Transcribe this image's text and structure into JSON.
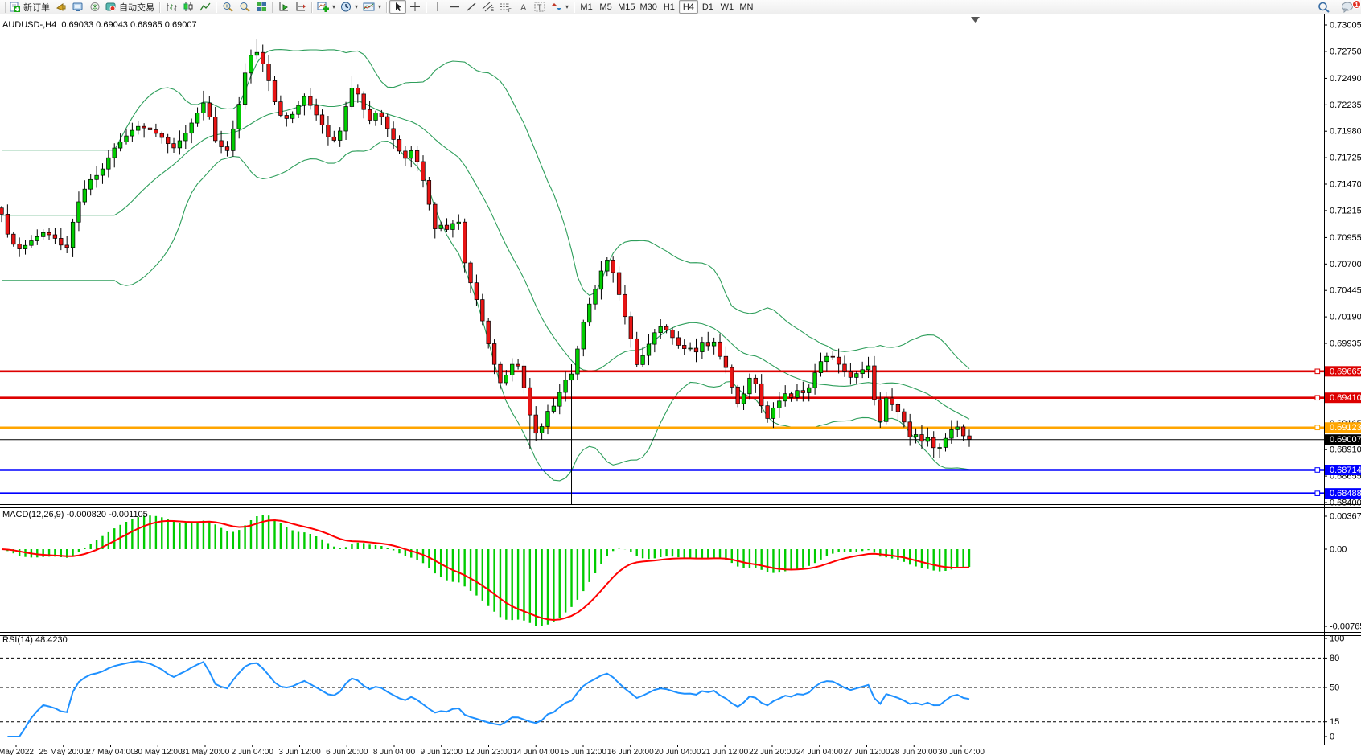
{
  "toolbar": {
    "new_order_label": "新订单",
    "autotrading_label": "自动交易",
    "timeframes": [
      "M1",
      "M5",
      "M15",
      "M30",
      "H1",
      "H4",
      "D1",
      "W1",
      "MN"
    ],
    "active_timeframe": "H4",
    "notification_count": "1"
  },
  "chart_title": "AUDUSD-,H4  0.69033 0.69043 0.68985 0.69007",
  "chart_data": {
    "type": "candlestick",
    "symbol": "AUDUSD-",
    "timeframe": "H4",
    "ohlc_display": {
      "open": "0.69033",
      "high": "0.69043",
      "low": "0.68985",
      "close": "0.69007"
    },
    "ylim": [
      0.68369,
      0.7309
    ],
    "price_axis_labels": [
      "0.73005",
      "0.72750",
      "0.72490",
      "0.72235",
      "0.71980",
      "0.71725",
      "0.71470",
      "0.71215",
      "0.70955",
      "0.70700",
      "0.70445",
      "0.70190",
      "0.69935",
      "0.69165",
      "0.68910",
      "0.68655",
      "0.68400"
    ],
    "price_axis_values": [
      0.73005,
      0.7275,
      0.7249,
      0.72235,
      0.7198,
      0.71725,
      0.7147,
      0.71215,
      0.70955,
      0.707,
      0.70445,
      0.7019,
      0.69935,
      0.69165,
      0.6891,
      0.68655,
      0.684
    ],
    "horizontal_lines": [
      {
        "price": 0.69665,
        "label": "0.69665",
        "color": "#DD0000"
      },
      {
        "price": 0.6941,
        "label": "0.69410",
        "color": "#DD0000"
      },
      {
        "price": 0.69123,
        "label": "0.69123",
        "color": "#FFA500"
      },
      {
        "price": 0.68714,
        "label": "0.68714",
        "color": "#0000FF"
      },
      {
        "price": 0.68488,
        "label": "0.68488",
        "color": "#0000FF"
      }
    ],
    "current_price": {
      "value": 0.69007,
      "label": "0.69007",
      "color": "#000000"
    },
    "candle_colors": {
      "up": "#00CE00",
      "down": "#E81414",
      "outline": "#000000"
    },
    "price_path": [
      [
        2,
        0.7118
      ],
      [
        12,
        0.7092
      ],
      [
        25,
        0.7084
      ],
      [
        40,
        0.7093
      ],
      [
        55,
        0.7101
      ],
      [
        70,
        0.7094
      ],
      [
        82,
        0.7082
      ],
      [
        95,
        0.7125
      ],
      [
        110,
        0.715
      ],
      [
        125,
        0.7158
      ],
      [
        140,
        0.718
      ],
      [
        155,
        0.7192
      ],
      [
        170,
        0.7203
      ],
      [
        185,
        0.72
      ],
      [
        200,
        0.7193
      ],
      [
        215,
        0.7181
      ],
      [
        230,
        0.7195
      ],
      [
        245,
        0.7215
      ],
      [
        255,
        0.7228
      ],
      [
        268,
        0.7188
      ],
      [
        282,
        0.7178
      ],
      [
        295,
        0.7215
      ],
      [
        308,
        0.7268
      ],
      [
        318,
        0.7276
      ],
      [
        330,
        0.7258
      ],
      [
        342,
        0.7225
      ],
      [
        352,
        0.7208
      ],
      [
        365,
        0.7215
      ],
      [
        378,
        0.7232
      ],
      [
        390,
        0.7218
      ],
      [
        402,
        0.7202
      ],
      [
        412,
        0.7186
      ],
      [
        422,
        0.7196
      ],
      [
        432,
        0.7228
      ],
      [
        440,
        0.7245
      ],
      [
        450,
        0.7222
      ],
      [
        460,
        0.7208
      ],
      [
        470,
        0.7219
      ],
      [
        480,
        0.7203
      ],
      [
        492,
        0.7186
      ],
      [
        502,
        0.717
      ],
      [
        512,
        0.718
      ],
      [
        522,
        0.7163
      ],
      [
        532,
        0.7132
      ],
      [
        542,
        0.71
      ],
      [
        552,
        0.7112
      ],
      [
        560,
        0.7092
      ],
      [
        567,
        0.7133
      ],
      [
        575,
        0.7078
      ],
      [
        585,
        0.7052
      ],
      [
        595,
        0.703
      ],
      [
        605,
        0.6999
      ],
      [
        615,
        0.6972
      ],
      [
        623,
        0.6953
      ],
      [
        632,
        0.6967
      ],
      [
        641,
        0.6979
      ],
      [
        649,
        0.696
      ],
      [
        657,
        0.693
      ],
      [
        665,
        0.6906
      ],
      [
        673,
        0.6912
      ],
      [
        681,
        0.6928
      ],
      [
        690,
        0.6934
      ],
      [
        698,
        0.6951
      ],
      [
        706,
        0.6962
      ],
      [
        713,
        0.6965
      ],
      [
        720,
        0.6998
      ],
      [
        728,
        0.7022
      ],
      [
        736,
        0.7038
      ],
      [
        744,
        0.7053
      ],
      [
        752,
        0.7077
      ],
      [
        760,
        0.7068
      ],
      [
        768,
        0.7045
      ],
      [
        776,
        0.7022
      ],
      [
        784,
        0.6999
      ],
      [
        792,
        0.6972
      ],
      [
        800,
        0.6983
      ],
      [
        808,
        0.6995
      ],
      [
        816,
        0.7007
      ],
      [
        824,
        0.7011
      ],
      [
        832,
        0.7003
      ],
      [
        840,
        0.6995
      ],
      [
        848,
        0.6987
      ],
      [
        856,
        0.6991
      ],
      [
        864,
        0.6983
      ],
      [
        872,
        0.6995
      ],
      [
        880,
        0.6991
      ],
      [
        888,
        0.6995
      ],
      [
        896,
        0.6979
      ],
      [
        904,
        0.6968
      ],
      [
        912,
        0.6945
      ],
      [
        920,
        0.693
      ],
      [
        928,
        0.6956
      ],
      [
        936,
        0.6964
      ],
      [
        944,
        0.6941
      ],
      [
        952,
        0.6918
      ],
      [
        960,
        0.693
      ],
      [
        968,
        0.6937
      ],
      [
        976,
        0.6945
      ],
      [
        984,
        0.6941
      ],
      [
        992,
        0.6949
      ],
      [
        1000,
        0.6945
      ],
      [
        1008,
        0.6953
      ],
      [
        1016,
        0.6972
      ],
      [
        1024,
        0.6979
      ],
      [
        1032,
        0.6983
      ],
      [
        1040,
        0.6976
      ],
      [
        1048,
        0.6968
      ],
      [
        1056,
        0.696
      ],
      [
        1064,
        0.6964
      ],
      [
        1072,
        0.6968
      ],
      [
        1080,
        0.6972
      ],
      [
        1086,
        0.6946
      ],
      [
        1092,
        0.6902
      ],
      [
        1098,
        0.6944
      ],
      [
        1106,
        0.6937
      ],
      [
        1114,
        0.693
      ],
      [
        1122,
        0.6922
      ],
      [
        1130,
        0.6903
      ],
      [
        1138,
        0.6906
      ],
      [
        1146,
        0.6899
      ],
      [
        1154,
        0.6903
      ],
      [
        1164,
        0.6888
      ],
      [
        1172,
        0.6898
      ],
      [
        1180,
        0.6907
      ],
      [
        1188,
        0.6916
      ],
      [
        1196,
        0.6905
      ],
      [
        1205,
        0.6901
      ]
    ],
    "spikes": [
      {
        "x": 713,
        "low": 0.6838
      },
      {
        "x": 660,
        "low": 0.6892
      },
      {
        "x": 1164,
        "low": 0.6883
      },
      {
        "x": 318,
        "high": 0.7287
      },
      {
        "x": 255,
        "high": 0.7237
      },
      {
        "x": 440,
        "high": 0.7251
      }
    ],
    "indicators": {
      "bollinger": {
        "period": 20,
        "deviation": 2,
        "color": "#2E9E5B"
      },
      "macd": {
        "label": "MACD(12,26,9) -0.000820 -0.001105",
        "fast": 12,
        "slow": 26,
        "signal_period": 9,
        "value": -0.00082,
        "signal_value": -0.001105,
        "axis_labels": [
          "0.003672",
          "0.00",
          "-0.007656"
        ],
        "axis_values": [
          0.003672,
          0,
          -0.007656
        ],
        "hist_color": "#00CC00",
        "signal_color": "#FF0000"
      },
      "rsi": {
        "label": "RSI(14) 48.4230",
        "period": 14,
        "value": 48.423,
        "levels": [
          80,
          50,
          15
        ],
        "axis_labels": [
          "100",
          "80",
          "50",
          "15",
          "0"
        ],
        "axis_values": [
          100,
          80,
          50,
          15,
          0
        ],
        "color": "#1E90FF"
      }
    },
    "time_labels": [
      "May 2022",
      "25 May 20:00",
      "27 May 04:00",
      "30 May 12:00",
      "31 May 20:00",
      "2 Jun 04:00",
      "3 Jun 12:00",
      "6 Jun 20:00",
      "8 Jun 04:00",
      "9 Jun 12:00",
      "12 Jun 23:00",
      "14 Jun 04:00",
      "15 Jun 12:00",
      "16 Jun 20:00",
      "20 Jun 04:00",
      "21 Jun 12:00",
      "22 Jun 20:00",
      "24 Jun 04:00",
      "27 Jun 12:00",
      "28 Jun 20:00",
      "30 Jun 04:00"
    ]
  }
}
